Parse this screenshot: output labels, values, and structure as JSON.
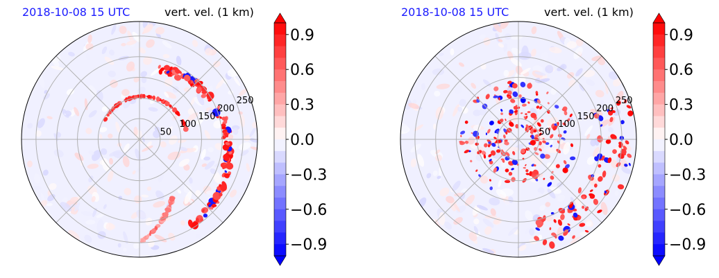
{
  "chart_data": [
    {
      "type": "polar_field",
      "title_left": "2018-10-08 15 UTC",
      "title_right": "vert. vel. (1 km)",
      "radial_ticks": [
        "50",
        "100",
        "150",
        "200",
        "250"
      ],
      "r_values": [
        50,
        100,
        150,
        200,
        250
      ],
      "r_max": 285,
      "colorbar": {
        "ticks": [
          "0.9",
          "0.6",
          "0.3",
          "0.0",
          "−0.3",
          "−0.6",
          "−0.9"
        ],
        "tick_values": [
          0.9,
          0.6,
          0.3,
          0.0,
          -0.3,
          -0.6,
          -0.9
        ],
        "vmin": -1.0,
        "vmax": 1.0,
        "extend": "both",
        "cmap": "bwr"
      },
      "colors": {
        "positive": "#ff0000",
        "negative": "#0000ff",
        "neutral": "#ffffff",
        "grid": "#b0b0b0",
        "title": "#1a1aff"
      }
    },
    {
      "type": "polar_field",
      "title_left": "2018-10-08 15 UTC",
      "title_right": "vert. vel. (1 km)",
      "radial_ticks": [
        "50",
        "100",
        "150",
        "200",
        "250"
      ],
      "r_values": [
        50,
        100,
        150,
        200,
        250
      ],
      "r_max": 285,
      "colorbar": {
        "ticks": [
          "0.9",
          "0.6",
          "0.3",
          "0.0",
          "−0.3",
          "−0.6",
          "−0.9"
        ],
        "tick_values": [
          0.9,
          0.6,
          0.3,
          0.0,
          -0.3,
          -0.6,
          -0.9
        ],
        "vmin": -1.0,
        "vmax": 1.0,
        "extend": "both",
        "cmap": "bwr"
      },
      "colors": {
        "positive": "#ff0000",
        "negative": "#0000ff",
        "neutral": "#ffffff",
        "grid": "#b0b0b0",
        "title": "#1a1aff"
      }
    }
  ]
}
